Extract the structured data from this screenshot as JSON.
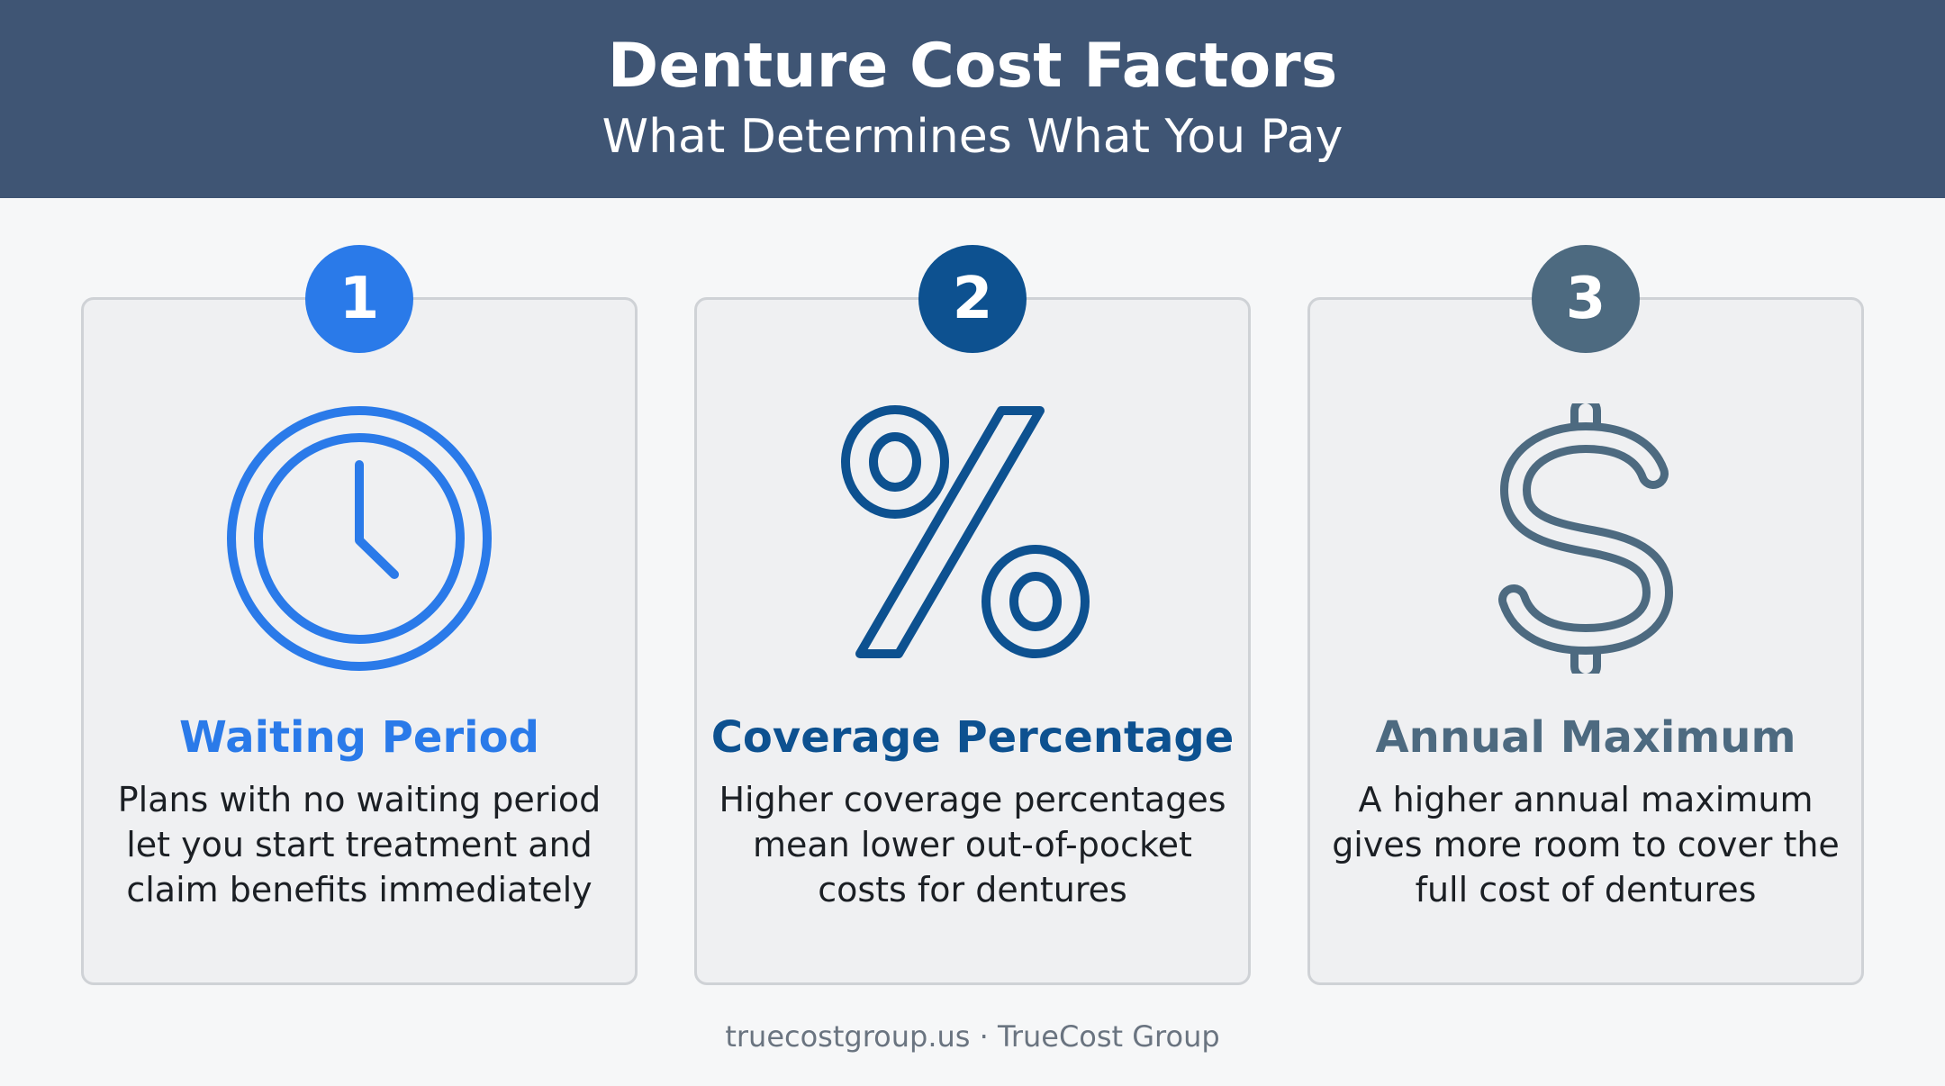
{
  "header": {
    "title": "Denture Cost Factors",
    "subtitle": "What Determines What You Pay"
  },
  "cards": [
    {
      "number": "1",
      "icon": "clock-icon",
      "title": "Waiting Period",
      "description": "Plans with no waiting period let you start treatment and claim benefits immediately",
      "color": "#2a7ae9"
    },
    {
      "number": "2",
      "icon": "percent-icon",
      "title": "Coverage Percentage",
      "description": "Higher coverage percentages mean lower out-of-pocket costs for dentures",
      "color": "#0d5190"
    },
    {
      "number": "3",
      "icon": "dollar-icon",
      "title": "Annual Maximum",
      "description": "A higher annual maximum gives more room to cover the full cost of dentures",
      "color": "#4d6a80"
    }
  ],
  "footer": {
    "text": "truecostgroup.us · TrueCost Group"
  },
  "colors": {
    "header_bg": "#3f5574",
    "page_bg": "#f6f7f8",
    "card_bg": "#eff0f2",
    "card_border": "#cfd2d6"
  }
}
